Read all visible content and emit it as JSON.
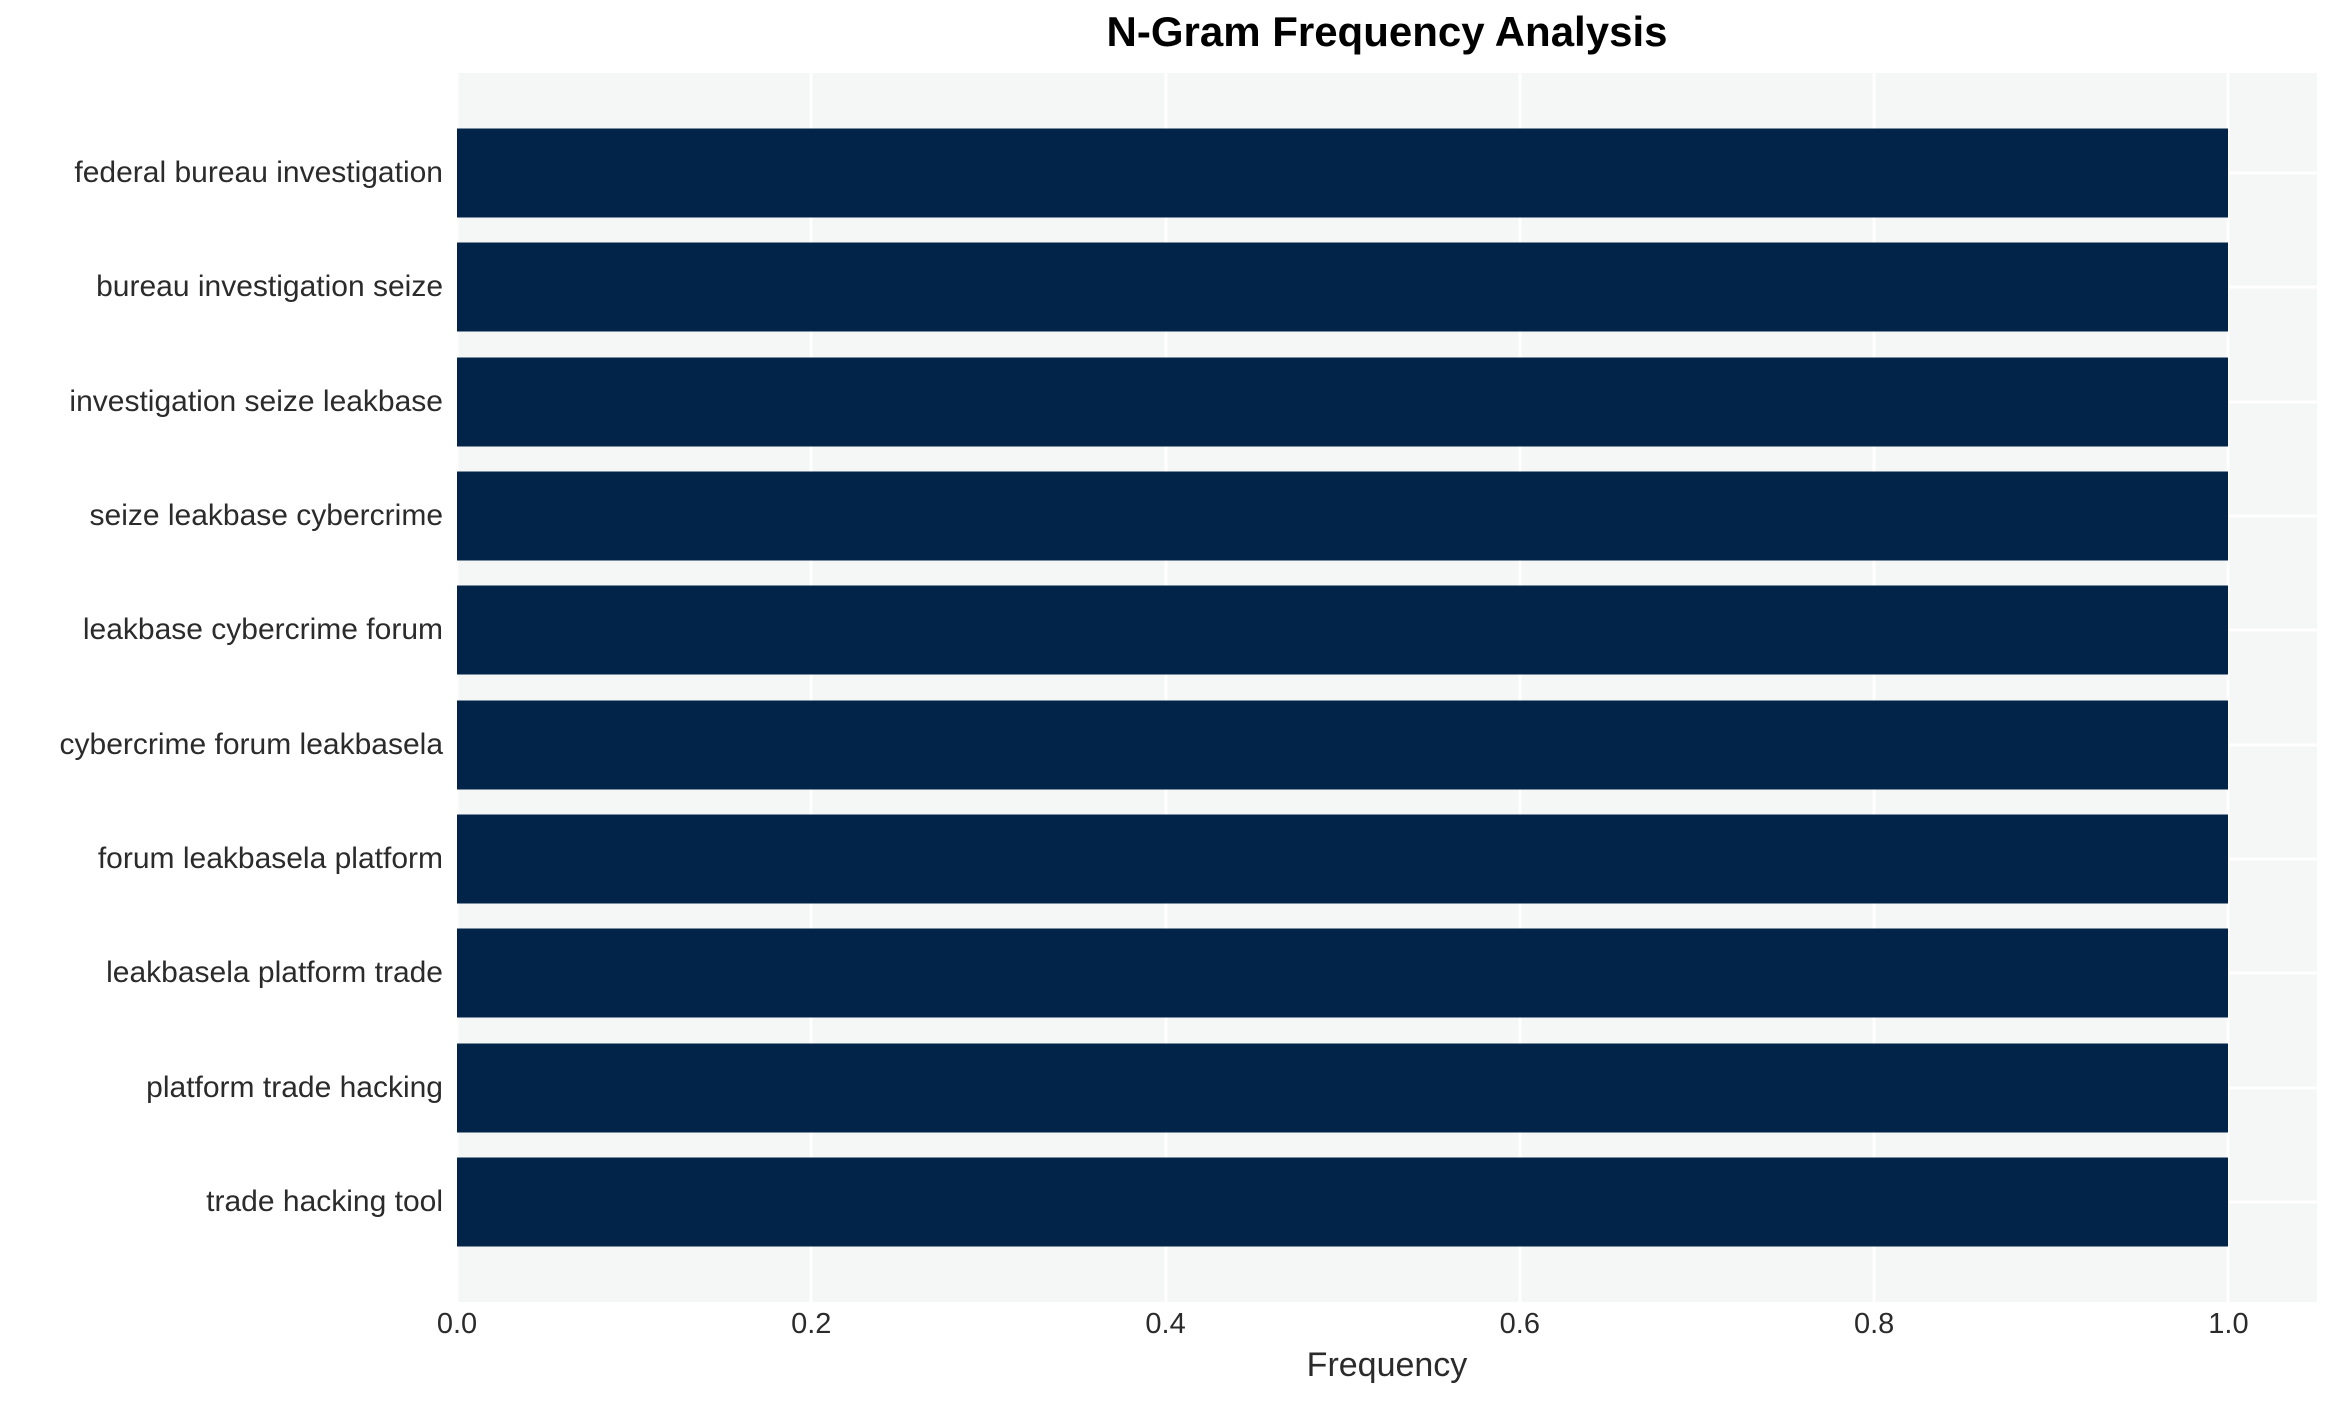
{
  "chart_data": {
    "type": "bar",
    "orientation": "horizontal",
    "title": "N-Gram Frequency Analysis",
    "xlabel": "Frequency",
    "ylabel": "",
    "categories": [
      "federal bureau investigation",
      "bureau investigation seize",
      "investigation seize leakbase",
      "seize leakbase cybercrime",
      "leakbase cybercrime forum",
      "cybercrime forum leakbasela",
      "forum leakbasela platform",
      "leakbasela platform trade",
      "platform trade hacking",
      "trade hacking tool"
    ],
    "values": [
      1.0,
      1.0,
      1.0,
      1.0,
      1.0,
      1.0,
      1.0,
      1.0,
      1.0,
      1.0
    ],
    "xlim": [
      0,
      1.05
    ],
    "xticks": [
      {
        "value": 0.0,
        "label": "0.0"
      },
      {
        "value": 0.2,
        "label": "0.2"
      },
      {
        "value": 0.4,
        "label": "0.4"
      },
      {
        "value": 0.6,
        "label": "0.6"
      },
      {
        "value": 0.8,
        "label": "0.8"
      },
      {
        "value": 1.0,
        "label": "1.0"
      }
    ],
    "grid": "white gridlines on light gray plot, vertical at x ticks and horizontal at bar centers",
    "legend": false,
    "colors": {
      "bar": "#032449",
      "plot_background": "#f5f6f6",
      "gridline": "#ffffff",
      "page_background": "#ffffff",
      "tick_text": "#2b2b2b",
      "title_text": "#000000"
    }
  }
}
